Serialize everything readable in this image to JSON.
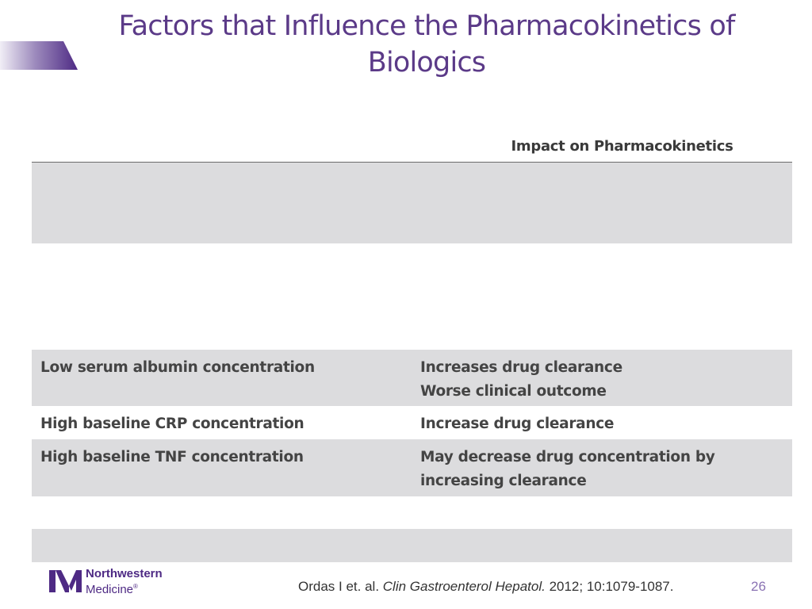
{
  "slide": {
    "title_line1": "Factors that Influence the Pharmacokinetics of",
    "title_line2": "Biologics",
    "page_number": "26"
  },
  "table": {
    "header_col1": "",
    "header_col2": "Impact on Pharmacokinetics",
    "rows": [
      {
        "factor": "",
        "impact": [
          "",
          ""
        ],
        "shaded": true
      },
      {
        "factor": "",
        "impact": [
          "",
          ""
        ],
        "shaded": false
      },
      {
        "factor": "Low serum albumin concentration",
        "impact": [
          "Increases drug clearance",
          "Worse clinical outcome"
        ],
        "shaded": true
      },
      {
        "factor": "High baseline CRP concentration",
        "impact": [
          "Increase drug clearance",
          ""
        ],
        "shaded": false
      },
      {
        "factor": "High baseline TNF concentration",
        "impact": [
          "May decrease drug concentration by",
          "increasing clearance"
        ],
        "shaded": true
      },
      {
        "factor": "",
        "impact": [
          "",
          ""
        ],
        "shaded": false
      },
      {
        "factor": "",
        "impact": [
          "",
          ""
        ],
        "shaded": true
      }
    ]
  },
  "footer": {
    "logo_line1": "Northwestern",
    "logo_line2": "Medicine",
    "logo_mark": "®",
    "citation_authors": "Ordas I et. al.",
    "citation_journal": "Clin Gastroenterol Hepatol.",
    "citation_details": "2012; 10:1079-1087."
  },
  "colors": {
    "title": "#5b3a88",
    "accent_gradient_start": "#ffffff",
    "accent_gradient_end": "#5b3a88",
    "row_shade": "#dcdcde",
    "page_number": "#8a72b3"
  }
}
